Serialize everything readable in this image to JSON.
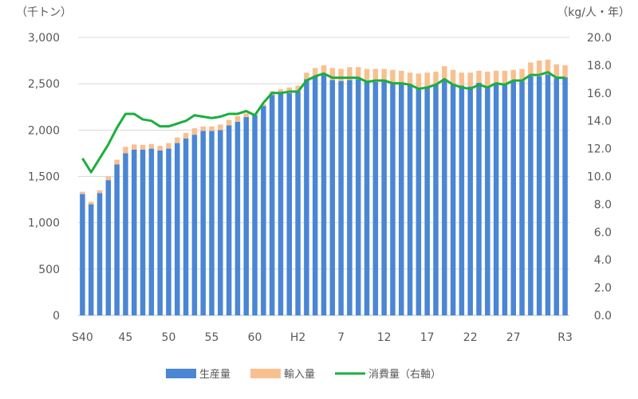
{
  "chart_data": {
    "type": "bar",
    "title": "",
    "ylabel_left": "（千トン）",
    "ylabel_right": "（kg/人・年）",
    "ylim_left": [
      0,
      3000
    ],
    "ylim_right": [
      0,
      20
    ],
    "yticks_left": [
      "0",
      "500",
      "1,000",
      "1,500",
      "2,000",
      "2,500",
      "3,000"
    ],
    "yticks_right": [
      "0.0",
      "2.0",
      "4.0",
      "6.0",
      "8.0",
      "10.0",
      "12.0",
      "14.0",
      "16.0",
      "18.0",
      "20.0"
    ],
    "x_tick_labels": [
      {
        "index": 0,
        "label": "S40"
      },
      {
        "index": 5,
        "label": "45"
      },
      {
        "index": 10,
        "label": "50"
      },
      {
        "index": 15,
        "label": "55"
      },
      {
        "index": 20,
        "label": "60"
      },
      {
        "index": 25,
        "label": "H2"
      },
      {
        "index": 30,
        "label": "7"
      },
      {
        "index": 35,
        "label": "12"
      },
      {
        "index": 40,
        "label": "17"
      },
      {
        "index": 45,
        "label": "22"
      },
      {
        "index": 50,
        "label": "27"
      },
      {
        "index": 56,
        "label": "R3"
      }
    ],
    "grid": true,
    "legend_position": "bottom",
    "series": [
      {
        "name": "生産量",
        "type": "bar-stacked",
        "axis": "left",
        "color": "#4a86d4",
        "values": [
          1310,
          1200,
          1320,
          1460,
          1630,
          1750,
          1790,
          1790,
          1800,
          1780,
          1800,
          1860,
          1910,
          1950,
          1990,
          1990,
          2000,
          2050,
          2090,
          2140,
          2160,
          2260,
          2380,
          2400,
          2400,
          2420,
          2550,
          2580,
          2600,
          2540,
          2530,
          2540,
          2550,
          2520,
          2520,
          2530,
          2510,
          2500,
          2490,
          2460,
          2470,
          2490,
          2550,
          2500,
          2480,
          2470,
          2510,
          2470,
          2510,
          2500,
          2530,
          2530,
          2580,
          2580,
          2600,
          2560,
          2570
        ]
      },
      {
        "name": "輸入量",
        "type": "bar-stacked",
        "axis": "left",
        "color": "#f9c08f",
        "values": [
          25,
          25,
          30,
          40,
          50,
          70,
          55,
          50,
          50,
          50,
          60,
          60,
          60,
          70,
          50,
          50,
          60,
          60,
          60,
          40,
          20,
          20,
          40,
          40,
          60,
          60,
          70,
          90,
          100,
          130,
          130,
          140,
          130,
          140,
          140,
          130,
          140,
          140,
          130,
          150,
          150,
          140,
          140,
          150,
          140,
          150,
          130,
          160,
          130,
          140,
          120,
          130,
          150,
          170,
          160,
          150,
          130
        ]
      },
      {
        "name": "消費量（右軸）",
        "type": "line",
        "axis": "right",
        "color": "#1aaf3c",
        "values": [
          11.3,
          10.3,
          11.3,
          12.3,
          13.5,
          14.5,
          14.5,
          14.1,
          14.0,
          13.6,
          13.6,
          13.8,
          14.0,
          14.4,
          14.3,
          14.2,
          14.3,
          14.5,
          14.5,
          14.7,
          14.4,
          15.3,
          16.0,
          16.0,
          16.1,
          16.1,
          16.9,
          17.2,
          17.4,
          17.1,
          17.1,
          17.1,
          17.1,
          16.8,
          16.9,
          16.9,
          16.7,
          16.7,
          16.6,
          16.3,
          16.4,
          16.6,
          17.0,
          16.6,
          16.4,
          16.3,
          16.6,
          16.4,
          16.7,
          16.6,
          16.9,
          16.9,
          17.3,
          17.3,
          17.5,
          17.1,
          17.1
        ]
      }
    ]
  }
}
